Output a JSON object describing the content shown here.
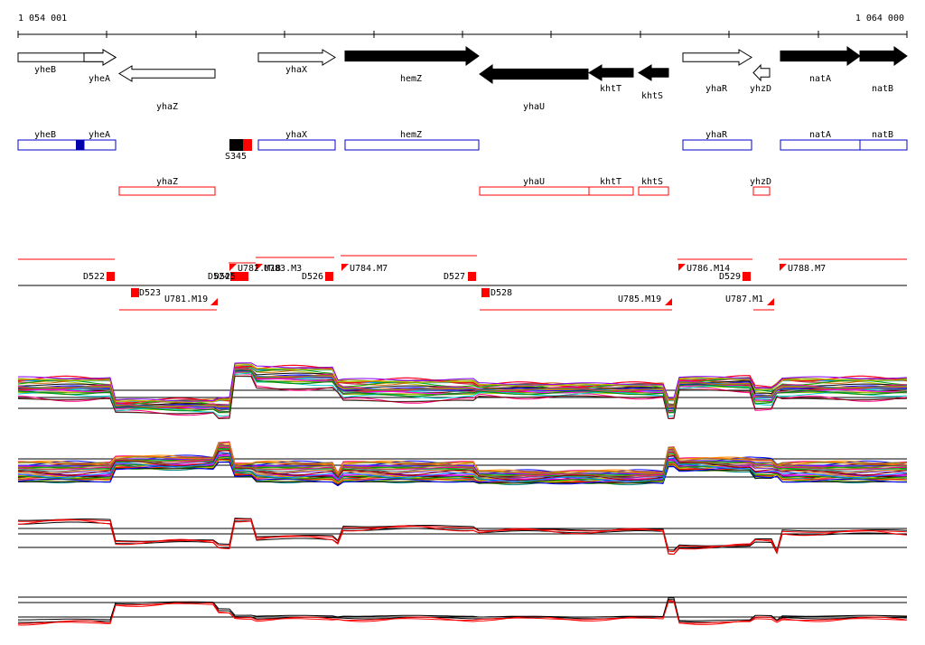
{
  "coords": {
    "start": "1 054 001",
    "end": "1 064 000"
  },
  "genes_top": [
    {
      "label": "yheB",
      "filled": false,
      "dir": "right"
    },
    {
      "label": "yheA",
      "filled": false,
      "dir": "right"
    },
    {
      "label": "yhaZ",
      "filled": false,
      "dir": "left"
    },
    {
      "label": "yhaX",
      "filled": false,
      "dir": "right"
    },
    {
      "label": "hemZ",
      "filled": true,
      "dir": "right"
    },
    {
      "label": "yhaU",
      "filled": true,
      "dir": "left"
    },
    {
      "label": "khtT",
      "filled": true,
      "dir": "left"
    },
    {
      "label": "khtS",
      "filled": true,
      "dir": "left"
    },
    {
      "label": "yhaR",
      "filled": false,
      "dir": "right"
    },
    {
      "label": "yhzD",
      "filled": false,
      "dir": "left"
    },
    {
      "label": "natA",
      "filled": true,
      "dir": "right"
    },
    {
      "label": "natB",
      "filled": true,
      "dir": "right"
    }
  ],
  "blue_features": [
    "yheB",
    "yheA",
    "yhaX",
    "hemZ",
    "yhaR",
    "natA",
    "natB"
  ],
  "red_features": [
    "yhaZ",
    "yhaU",
    "khtT",
    "khtS",
    "yhzD"
  ],
  "marker_label": "S345",
  "segment_labels": [
    "D522",
    "D523",
    "U781.M19",
    "D524",
    "D525",
    "U782.M18",
    "U783.M3",
    "D526",
    "U784.M7",
    "D527",
    "D528",
    "U785.M19",
    "U786.M14",
    "D529",
    "U787.M1",
    "U788.M7"
  ],
  "colors": {
    "blue": "#0000cc",
    "red": "#ff0000",
    "black": "#000000"
  }
}
